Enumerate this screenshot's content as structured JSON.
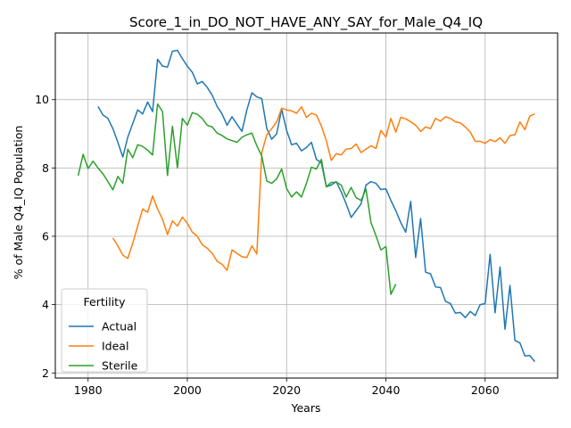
{
  "chart_data": {
    "type": "line",
    "title": "Score_1_in_DO_NOT_HAVE_ANY_SAY_for_Male_Q4_IQ",
    "xlabel": "Years",
    "ylabel": "% of Male Q4_IQ Population",
    "xlim": [
      1973.4,
      2074.6
    ],
    "ylim": [
      1.85,
      11.95
    ],
    "xticks": [
      1980,
      2000,
      2020,
      2040,
      2060
    ],
    "yticks": [
      2,
      4,
      6,
      8,
      10
    ],
    "grid": true,
    "legend": {
      "title": "Fertility",
      "position": "lower-left"
    },
    "series": [
      {
        "name": "Actual",
        "color": "#1f77b4",
        "points": [
          [
            1982,
            9.8
          ],
          [
            1983,
            9.55
          ],
          [
            1984,
            9.45
          ],
          [
            1985,
            9.15
          ],
          [
            1986,
            8.75
          ],
          [
            1987,
            8.32
          ],
          [
            1988,
            8.9
          ],
          [
            1989,
            9.3
          ],
          [
            1990,
            9.7
          ],
          [
            1991,
            9.58
          ],
          [
            1992,
            9.93
          ],
          [
            1993,
            9.65
          ],
          [
            1994,
            11.18
          ],
          [
            1995,
            10.98
          ],
          [
            1996,
            10.95
          ],
          [
            1997,
            11.42
          ],
          [
            1998,
            11.44
          ],
          [
            1999,
            11.2
          ],
          [
            2000,
            10.98
          ],
          [
            2001,
            10.8
          ],
          [
            2002,
            10.46
          ],
          [
            2003,
            10.53
          ],
          [
            2004,
            10.36
          ],
          [
            2005,
            10.13
          ],
          [
            2006,
            9.8
          ],
          [
            2007,
            9.58
          ],
          [
            2008,
            9.25
          ],
          [
            2009,
            9.5
          ],
          [
            2010,
            9.28
          ],
          [
            2011,
            9.07
          ],
          [
            2012,
            9.7
          ],
          [
            2013,
            10.2
          ],
          [
            2014,
            10.08
          ],
          [
            2015,
            10.03
          ],
          [
            2016,
            9.16
          ],
          [
            2017,
            8.84
          ],
          [
            2018,
            9.0
          ],
          [
            2019,
            9.72
          ],
          [
            2020,
            9.1
          ],
          [
            2021,
            8.68
          ],
          [
            2022,
            8.72
          ],
          [
            2023,
            8.5
          ],
          [
            2024,
            8.6
          ],
          [
            2025,
            8.75
          ],
          [
            2026,
            8.25
          ],
          [
            2027,
            8.15
          ],
          [
            2028,
            7.45
          ],
          [
            2029,
            7.5
          ],
          [
            2030,
            7.6
          ],
          [
            2031,
            7.3
          ],
          [
            2032,
            6.95
          ],
          [
            2033,
            6.55
          ],
          [
            2034,
            6.75
          ],
          [
            2035,
            6.95
          ],
          [
            2036,
            7.5
          ],
          [
            2037,
            7.6
          ],
          [
            2038,
            7.55
          ],
          [
            2039,
            7.37
          ],
          [
            2040,
            7.39
          ],
          [
            2041,
            7.05
          ],
          [
            2042,
            6.75
          ],
          [
            2043,
            6.4
          ],
          [
            2044,
            6.12
          ],
          [
            2045,
            7.02
          ],
          [
            2046,
            5.38
          ],
          [
            2047,
            6.52
          ],
          [
            2048,
            4.95
          ],
          [
            2049,
            4.9
          ],
          [
            2050,
            4.52
          ],
          [
            2051,
            4.5
          ],
          [
            2052,
            4.1
          ],
          [
            2053,
            4.03
          ],
          [
            2054,
            3.75
          ],
          [
            2055,
            3.77
          ],
          [
            2056,
            3.62
          ],
          [
            2057,
            3.8
          ],
          [
            2058,
            3.68
          ],
          [
            2059,
            4.0
          ],
          [
            2060,
            4.03
          ],
          [
            2061,
            5.47
          ],
          [
            2062,
            3.76
          ],
          [
            2063,
            5.1
          ],
          [
            2064,
            3.28
          ],
          [
            2065,
            4.56
          ],
          [
            2066,
            2.95
          ],
          [
            2067,
            2.88
          ],
          [
            2068,
            2.5
          ],
          [
            2069,
            2.51
          ],
          [
            2070,
            2.33
          ]
        ]
      },
      {
        "name": "Ideal",
        "color": "#ff7f0e",
        "points": [
          [
            1985,
            5.95
          ],
          [
            1986,
            5.72
          ],
          [
            1987,
            5.45
          ],
          [
            1988,
            5.35
          ],
          [
            1989,
            5.8
          ],
          [
            1990,
            6.3
          ],
          [
            1991,
            6.8
          ],
          [
            1992,
            6.7
          ],
          [
            1993,
            7.18
          ],
          [
            1994,
            6.8
          ],
          [
            1995,
            6.5
          ],
          [
            1996,
            6.05
          ],
          [
            1997,
            6.45
          ],
          [
            1998,
            6.3
          ],
          [
            1999,
            6.56
          ],
          [
            2000,
            6.38
          ],
          [
            2001,
            6.12
          ],
          [
            2002,
            6.0
          ],
          [
            2003,
            5.75
          ],
          [
            2004,
            5.65
          ],
          [
            2005,
            5.5
          ],
          [
            2006,
            5.27
          ],
          [
            2007,
            5.18
          ],
          [
            2008,
            5.0
          ],
          [
            2009,
            5.6
          ],
          [
            2010,
            5.5
          ],
          [
            2011,
            5.4
          ],
          [
            2012,
            5.38
          ],
          [
            2013,
            5.72
          ],
          [
            2014,
            5.48
          ],
          [
            2015,
            8.45
          ],
          [
            2016,
            8.97
          ],
          [
            2017,
            9.15
          ],
          [
            2018,
            9.35
          ],
          [
            2019,
            9.75
          ],
          [
            2020,
            9.7
          ],
          [
            2021,
            9.67
          ],
          [
            2022,
            9.6
          ],
          [
            2023,
            9.79
          ],
          [
            2024,
            9.48
          ],
          [
            2025,
            9.6
          ],
          [
            2026,
            9.55
          ],
          [
            2027,
            9.23
          ],
          [
            2028,
            8.8
          ],
          [
            2029,
            8.22
          ],
          [
            2030,
            8.42
          ],
          [
            2031,
            8.38
          ],
          [
            2032,
            8.55
          ],
          [
            2033,
            8.57
          ],
          [
            2034,
            8.7
          ],
          [
            2035,
            8.45
          ],
          [
            2036,
            8.55
          ],
          [
            2037,
            8.65
          ],
          [
            2038,
            8.57
          ],
          [
            2039,
            9.1
          ],
          [
            2040,
            8.9
          ],
          [
            2041,
            9.45
          ],
          [
            2042,
            9.05
          ],
          [
            2043,
            9.48
          ],
          [
            2044,
            9.44
          ],
          [
            2045,
            9.35
          ],
          [
            2046,
            9.25
          ],
          [
            2047,
            9.07
          ],
          [
            2048,
            9.2
          ],
          [
            2049,
            9.15
          ],
          [
            2050,
            9.45
          ],
          [
            2051,
            9.37
          ],
          [
            2052,
            9.5
          ],
          [
            2053,
            9.45
          ],
          [
            2054,
            9.35
          ],
          [
            2055,
            9.32
          ],
          [
            2056,
            9.2
          ],
          [
            2057,
            9.05
          ],
          [
            2058,
            8.78
          ],
          [
            2059,
            8.78
          ],
          [
            2060,
            8.72
          ],
          [
            2061,
            8.83
          ],
          [
            2062,
            8.77
          ],
          [
            2063,
            8.88
          ],
          [
            2064,
            8.72
          ],
          [
            2065,
            8.95
          ],
          [
            2066,
            8.97
          ],
          [
            2067,
            9.35
          ],
          [
            2068,
            9.12
          ],
          [
            2069,
            9.52
          ],
          [
            2070,
            9.58
          ]
        ]
      },
      {
        "name": "Sterile",
        "color": "#2ca02c",
        "points": [
          [
            1978,
            7.77
          ],
          [
            1979,
            8.4
          ],
          [
            1980,
            7.98
          ],
          [
            1981,
            8.2
          ],
          [
            1982,
            8.0
          ],
          [
            1983,
            7.83
          ],
          [
            1984,
            7.6
          ],
          [
            1985,
            7.36
          ],
          [
            1986,
            7.75
          ],
          [
            1987,
            7.55
          ],
          [
            1988,
            8.55
          ],
          [
            1989,
            8.3
          ],
          [
            1990,
            8.68
          ],
          [
            1991,
            8.63
          ],
          [
            1992,
            8.52
          ],
          [
            1993,
            8.38
          ],
          [
            1994,
            9.87
          ],
          [
            1995,
            9.65
          ],
          [
            1996,
            7.78
          ],
          [
            1997,
            9.22
          ],
          [
            1998,
            8.0
          ],
          [
            1999,
            9.45
          ],
          [
            2000,
            9.25
          ],
          [
            2001,
            9.62
          ],
          [
            2002,
            9.57
          ],
          [
            2003,
            9.45
          ],
          [
            2004,
            9.25
          ],
          [
            2005,
            9.2
          ],
          [
            2006,
            9.02
          ],
          [
            2007,
            8.95
          ],
          [
            2008,
            8.85
          ],
          [
            2009,
            8.8
          ],
          [
            2010,
            8.75
          ],
          [
            2011,
            8.9
          ],
          [
            2012,
            8.97
          ],
          [
            2013,
            9.02
          ],
          [
            2014,
            8.65
          ],
          [
            2015,
            8.35
          ],
          [
            2016,
            7.62
          ],
          [
            2017,
            7.55
          ],
          [
            2018,
            7.68
          ],
          [
            2019,
            7.97
          ],
          [
            2020,
            7.4
          ],
          [
            2021,
            7.15
          ],
          [
            2022,
            7.3
          ],
          [
            2023,
            7.15
          ],
          [
            2024,
            7.55
          ],
          [
            2025,
            8.02
          ],
          [
            2026,
            7.97
          ],
          [
            2027,
            8.25
          ],
          [
            2028,
            7.45
          ],
          [
            2029,
            7.58
          ],
          [
            2030,
            7.58
          ],
          [
            2031,
            7.5
          ],
          [
            2032,
            7.15
          ],
          [
            2033,
            7.43
          ],
          [
            2034,
            7.13
          ],
          [
            2035,
            7.05
          ],
          [
            2036,
            7.38
          ],
          [
            2037,
            6.4
          ],
          [
            2038,
            6.02
          ],
          [
            2039,
            5.6
          ],
          [
            2040,
            5.7
          ],
          [
            2041,
            4.3
          ],
          [
            2042,
            4.6
          ]
        ]
      }
    ]
  }
}
